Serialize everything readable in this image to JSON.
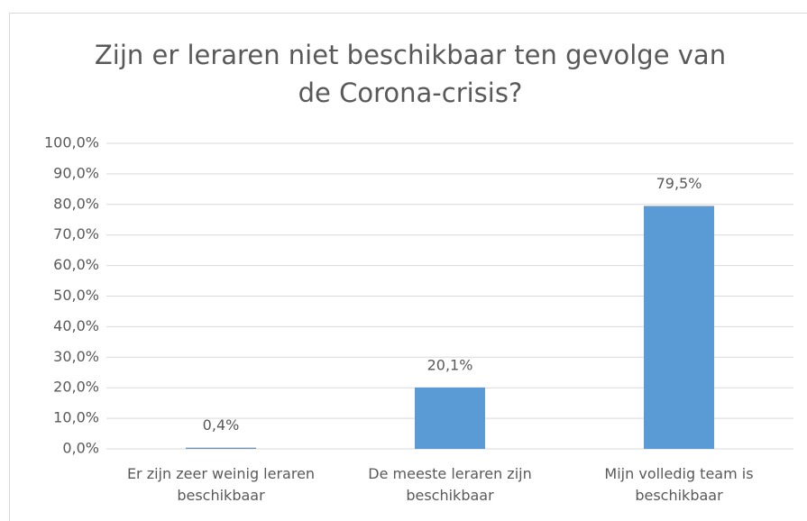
{
  "chart_data": {
    "type": "bar",
    "title": "Zijn er leraren niet beschikbaar ten gevolge van de Corona-crisis?",
    "categories": [
      "Er zijn zeer weinig leraren beschikbaar",
      "De meeste leraren zijn beschikbaar",
      "Mijn volledig team is beschikbaar"
    ],
    "values": [
      0.4,
      20.1,
      79.5
    ],
    "value_labels": [
      "0,4%",
      "20,1%",
      "79,5%"
    ],
    "color": "#5b9bd5",
    "ylim": [
      0,
      100
    ],
    "yticks": [
      {
        "value": 0,
        "label": "0,0%"
      },
      {
        "value": 10,
        "label": "10,0%"
      },
      {
        "value": 20,
        "label": "20,0%"
      },
      {
        "value": 30,
        "label": "30,0%"
      },
      {
        "value": 40,
        "label": "40,0%"
      },
      {
        "value": 50,
        "label": "50,0%"
      },
      {
        "value": 60,
        "label": "60,0%"
      },
      {
        "value": 70,
        "label": "70,0%"
      },
      {
        "value": 80,
        "label": "80,0%"
      },
      {
        "value": 90,
        "label": "90,0%"
      },
      {
        "value": 100,
        "label": "100,0%"
      }
    ],
    "grid": true
  }
}
